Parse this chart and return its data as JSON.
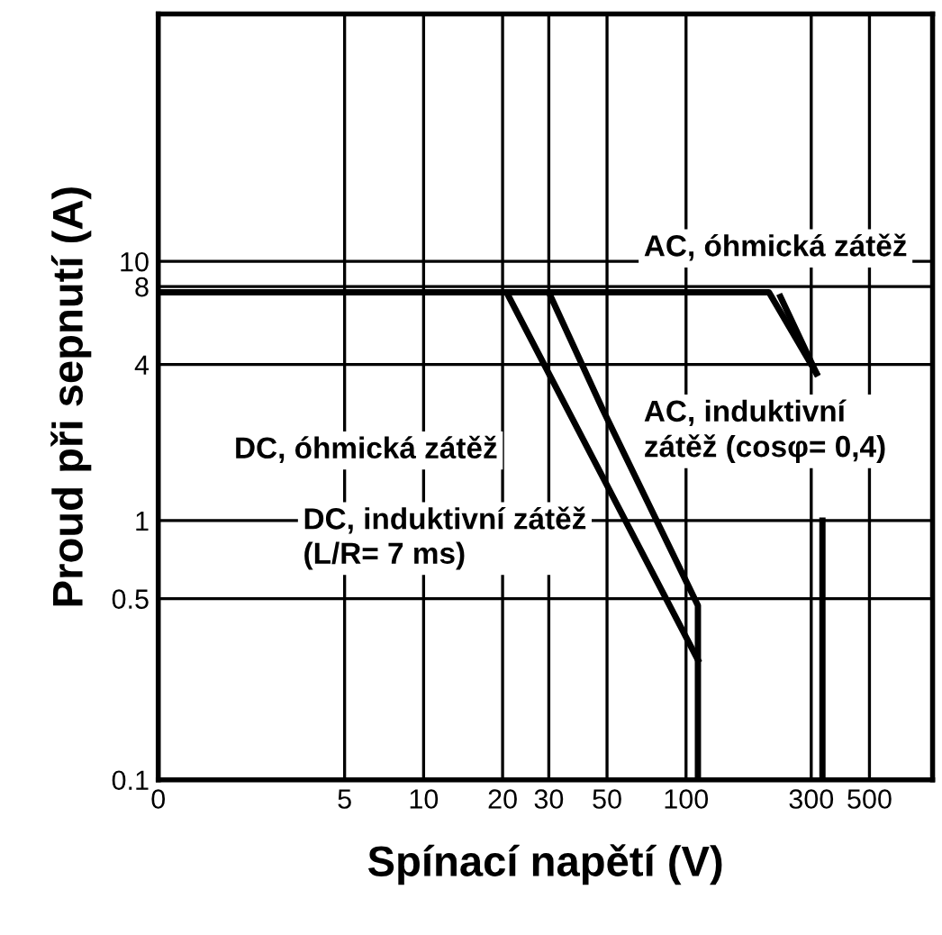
{
  "chart_data": {
    "type": "line",
    "xlabel": "Spínací napětí (V)",
    "ylabel": "Proud při sepnutí (A)",
    "log": "xy",
    "xlim": [
      0,
      870
    ],
    "ylim": [
      0.1,
      90
    ],
    "xticks": [
      0,
      5,
      10,
      20,
      30,
      50,
      100,
      300,
      500
    ],
    "yticks": [
      0.1,
      0.5,
      1,
      4,
      8,
      10
    ],
    "grid": true,
    "marker": "none",
    "line_style": "solid",
    "series": [
      {
        "color": "#000000",
        "x": [
          1,
          30,
          48,
          111,
          111
        ],
        "values": [
          7.6,
          7.6,
          2.7,
          0.47,
          0.1
        ]
      },
      {
        "color": "#000000",
        "x": [
          1,
          20.7,
          111
        ],
        "values": [
          7.6,
          7.6,
          0.29
        ]
      },
      {
        "color": "#000000",
        "x": [
          1,
          207,
          314
        ],
        "values": [
          7.6,
          7.6,
          3.7
        ]
      },
      {
        "color": "#000000",
        "x": [
          229,
          314
        ],
        "values": [
          7.3,
          3.7
        ]
      },
      {
        "color": "#000000",
        "x": [
          331,
          331
        ],
        "values": [
          1.0,
          0.1
        ]
      }
    ],
    "annotations": [
      "AC, óhmická zátěž",
      "AC, induktivní\nzátěž (cosφ= 0,4)",
      "DC, óhmická zátěž",
      "DC, induktivní zátěž\n(L/R= 7 ms)"
    ]
  }
}
